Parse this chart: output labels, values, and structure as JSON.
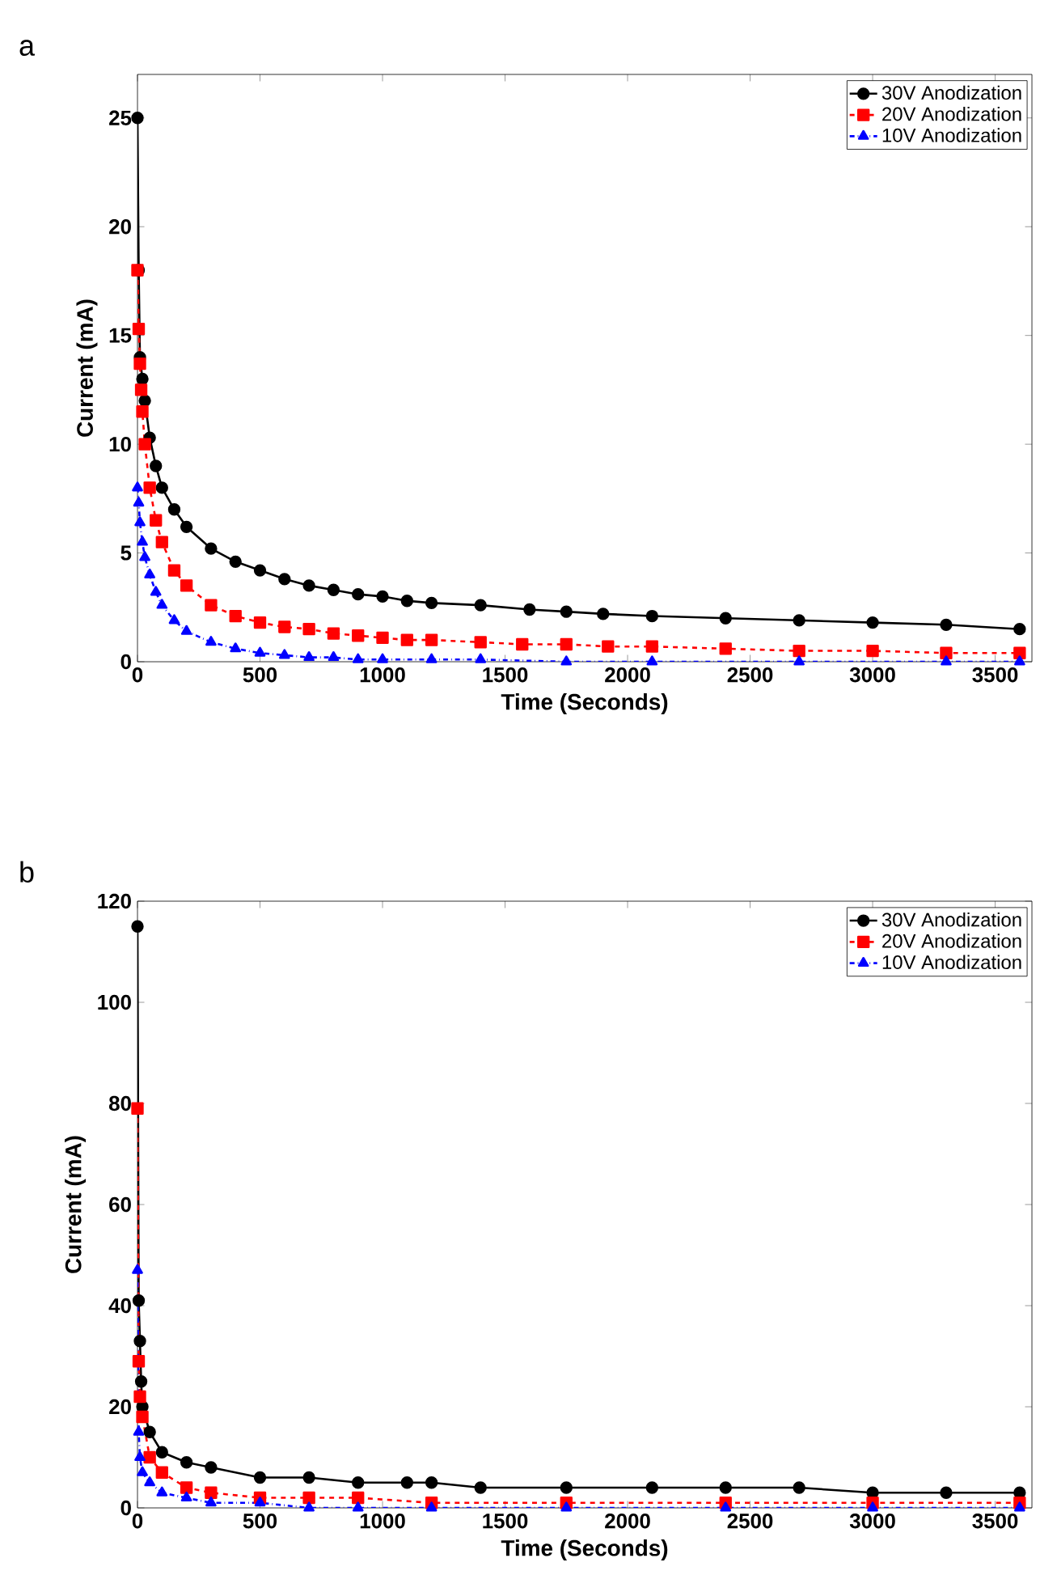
{
  "chart_data": [
    {
      "type": "line",
      "annotations": [
        "a"
      ],
      "xlabel": "Time (Seconds)",
      "ylabel": "Current (mA)",
      "xlim": [
        0,
        3650
      ],
      "ylim": [
        0,
        27
      ],
      "xticks": [
        0,
        500,
        1000,
        1500,
        2000,
        2500,
        3000,
        3500
      ],
      "yticks": [
        0,
        5,
        10,
        15,
        20,
        25
      ],
      "grid": false,
      "legend": "top right",
      "series": [
        {
          "name": "30V Anodization",
          "color": "#000000",
          "marker": "circle",
          "line_style": "solid",
          "x": [
            0,
            5,
            10,
            20,
            30,
            50,
            75,
            100,
            150,
            200,
            300,
            400,
            500,
            600,
            700,
            800,
            900,
            1000,
            1100,
            1200,
            1400,
            1600,
            1750,
            1900,
            2100,
            2400,
            2700,
            3000,
            3300,
            3600
          ],
          "values": [
            25,
            18,
            14,
            13,
            12,
            10.3,
            9,
            8,
            7,
            6.2,
            5.2,
            4.6,
            4.2,
            3.8,
            3.5,
            3.3,
            3.1,
            3.0,
            2.8,
            2.7,
            2.6,
            2.4,
            2.3,
            2.2,
            2.1,
            2.0,
            1.9,
            1.8,
            1.7,
            1.5
          ]
        },
        {
          "name": "20V Anodization",
          "color": "#ff0000",
          "marker": "square",
          "line_style": "dashed",
          "x": [
            0,
            5,
            10,
            15,
            20,
            30,
            50,
            75,
            100,
            150,
            200,
            300,
            400,
            500,
            600,
            700,
            800,
            900,
            1000,
            1100,
            1200,
            1400,
            1570,
            1750,
            1920,
            2100,
            2400,
            2700,
            3000,
            3300,
            3600
          ],
          "values": [
            18,
            15.3,
            13.7,
            12.5,
            11.5,
            10,
            8,
            6.5,
            5.5,
            4.2,
            3.5,
            2.6,
            2.1,
            1.8,
            1.6,
            1.5,
            1.3,
            1.2,
            1.1,
            1.0,
            1.0,
            0.9,
            0.8,
            0.8,
            0.7,
            0.7,
            0.6,
            0.5,
            0.5,
            0.4,
            0.4
          ]
        },
        {
          "name": "10V Anodization",
          "color": "#0000ff",
          "marker": "triangle",
          "line_style": "dashdot",
          "x": [
            0,
            5,
            10,
            20,
            30,
            50,
            75,
            100,
            150,
            200,
            300,
            400,
            500,
            600,
            700,
            800,
            900,
            1000,
            1200,
            1400,
            1750,
            2100,
            2700,
            3300,
            3600
          ],
          "values": [
            8,
            7.3,
            6.4,
            5.5,
            4.8,
            4,
            3.2,
            2.6,
            1.9,
            1.4,
            0.9,
            0.6,
            0.4,
            0.3,
            0.2,
            0.2,
            0.1,
            0.1,
            0.1,
            0.1,
            0,
            0,
            0,
            0,
            0
          ]
        }
      ]
    },
    {
      "type": "line",
      "annotations": [
        "b"
      ],
      "xlabel": "Time (Seconds)",
      "ylabel": "Current (mA)",
      "xlim": [
        0,
        3650
      ],
      "ylim": [
        0,
        120
      ],
      "xticks": [
        0,
        500,
        1000,
        1500,
        2000,
        2500,
        3000,
        3500
      ],
      "yticks": [
        0,
        20,
        40,
        60,
        80,
        100,
        120
      ],
      "grid": false,
      "legend": "top right",
      "series": [
        {
          "name": "30V Anodization",
          "color": "#000000",
          "marker": "circle",
          "line_style": "solid",
          "x": [
            0,
            5,
            10,
            15,
            20,
            50,
            100,
            200,
            300,
            500,
            700,
            900,
            1100,
            1200,
            1400,
            1750,
            2100,
            2400,
            2700,
            3000,
            3300,
            3600
          ],
          "values": [
            115,
            41,
            33,
            25,
            20,
            15,
            11,
            9,
            8,
            6,
            6,
            5,
            5,
            5,
            4,
            4,
            4,
            4,
            4,
            3,
            3,
            3
          ]
        },
        {
          "name": "20V Anodization",
          "color": "#ff0000",
          "marker": "square",
          "line_style": "dashed",
          "x": [
            0,
            5,
            10,
            20,
            50,
            100,
            200,
            300,
            500,
            700,
            900,
            1200,
            1750,
            2400,
            3000,
            3600
          ],
          "values": [
            79,
            29,
            22,
            18,
            10,
            7,
            4,
            3,
            2,
            2,
            2,
            1,
            1,
            1,
            1,
            1
          ]
        },
        {
          "name": "10V Anodization",
          "color": "#0000ff",
          "marker": "triangle",
          "line_style": "dashdot",
          "x": [
            0,
            5,
            10,
            20,
            50,
            100,
            200,
            300,
            500,
            700,
            900,
            1200,
            1750,
            2400,
            3000,
            3600
          ],
          "values": [
            47,
            15,
            10,
            7,
            5,
            3,
            2,
            1,
            1,
            0,
            0,
            0,
            0,
            0,
            0,
            0
          ]
        }
      ]
    }
  ]
}
